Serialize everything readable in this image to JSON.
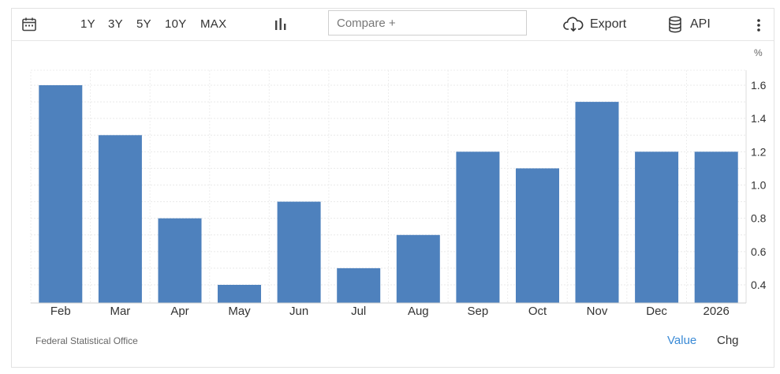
{
  "toolbar": {
    "calendar_icon": "calendar-icon",
    "ranges": [
      "1Y",
      "3Y",
      "5Y",
      "10Y",
      "MAX"
    ],
    "chart_type_icon": "bar-chart-icon",
    "compare_placeholder": "Compare +",
    "export_label": "Export",
    "export_icon": "cloud-download-icon",
    "api_label": "API",
    "api_icon": "database-icon",
    "more_icon": "vertical-dots-icon"
  },
  "unit_label": "%",
  "source": "Federal Statistical Office",
  "toggles": {
    "value": "Value",
    "chg": "Chg"
  },
  "colors": {
    "bar": "#4e81bd",
    "active_toggle": "#3a8ad6"
  },
  "chart_data": {
    "type": "bar",
    "categories": [
      "Feb",
      "Mar",
      "Apr",
      "May",
      "Jun",
      "Jul",
      "Aug",
      "Sep",
      "Oct",
      "Nov",
      "Dec",
      "2026"
    ],
    "values": [
      1.6,
      1.3,
      0.8,
      0.4,
      0.9,
      0.5,
      0.7,
      1.2,
      1.1,
      1.5,
      1.2,
      1.2
    ],
    "yticks": [
      "0.4",
      "0.6",
      "0.8",
      "1.0",
      "1.2",
      "1.4",
      "1.6"
    ],
    "ylim": [
      0.3,
      1.68
    ],
    "y_axis_position": "right",
    "grid": true
  }
}
